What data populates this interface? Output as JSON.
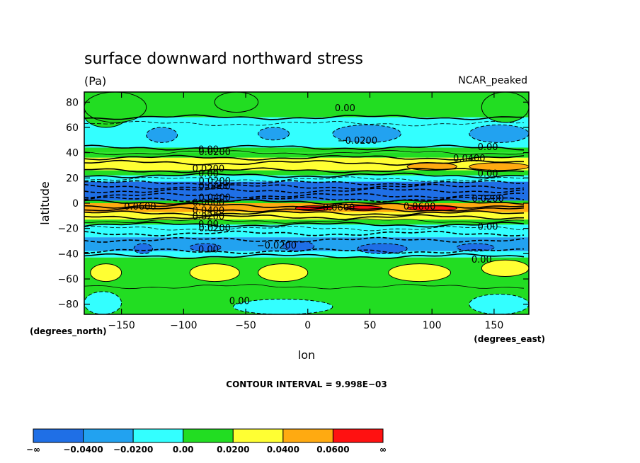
{
  "chart_data": {
    "type": "heatmap",
    "title": "surface downward northward stress",
    "units": "(Pa)",
    "dataset": "NCAR_peaked",
    "xlabel": "lon",
    "ylabel": "latitude",
    "x_unit": "(degrees_east)",
    "y_unit": "(degrees_north)",
    "xlim": [
      -180,
      178
    ],
    "ylim": [
      -88,
      88
    ],
    "x_ticks": [
      -150,
      -100,
      -50,
      0,
      50,
      100,
      150
    ],
    "x_tick_labels": [
      "−150",
      "−100",
      "−50",
      "0",
      "50",
      "100",
      "150"
    ],
    "y_ticks": [
      80,
      60,
      40,
      20,
      0,
      -20,
      -40,
      -60,
      -80
    ],
    "y_tick_labels": [
      "80",
      "60",
      "40",
      "20",
      "0",
      "−20",
      "−40",
      "−60",
      "−80"
    ],
    "contour_interval_text": "CONTOUR INTERVAL = 9.998E−03",
    "legend": {
      "boundaries": [
        "−∞",
        "−0.0400",
        "−0.0200",
        "0.00",
        "0.0200",
        "0.0400",
        "0.0600",
        "∞"
      ],
      "colors": [
        "#1f6fe6",
        "#22a2f0",
        "#33ffff",
        "#22dd22",
        "#ffff33",
        "#ffaa11",
        "#ff1111"
      ]
    },
    "bands": [
      {
        "lat": [
          68,
          88
        ],
        "value": 0.005
      },
      {
        "lat": [
          44,
          68
        ],
        "value": -0.008
      },
      {
        "lat": [
          40,
          44
        ],
        "value": 0.005
      },
      {
        "lat": [
          36,
          40
        ],
        "value": 0.015
      },
      {
        "lat": [
          26,
          36
        ],
        "value": 0.03
      },
      {
        "lat": [
          22,
          26
        ],
        "value": 0.01
      },
      {
        "lat": [
          17,
          22
        ],
        "value": -0.01
      },
      {
        "lat": [
          2,
          17
        ],
        "value": -0.045
      },
      {
        "lat": [
          0,
          2
        ],
        "value": 0.01
      },
      {
        "lat": [
          -7,
          0
        ],
        "value": 0.05
      },
      {
        "lat": [
          -13,
          -7
        ],
        "value": 0.03
      },
      {
        "lat": [
          -17,
          -13
        ],
        "value": 0.01
      },
      {
        "lat": [
          -27,
          -17
        ],
        "value": -0.01
      },
      {
        "lat": [
          -38,
          -27
        ],
        "value": -0.03
      },
      {
        "lat": [
          -43,
          -38
        ],
        "value": -0.01
      },
      {
        "lat": [
          -65,
          -43
        ],
        "value": 0.01
      },
      {
        "lat": [
          -88,
          -65
        ],
        "value": 0.003
      }
    ],
    "patches": [
      {
        "lon": [
          -75,
          -40
        ],
        "lat": [
          72,
          88
        ],
        "value": 0.005
      },
      {
        "lon": [
          -180,
          -145
        ],
        "lat": [
          60,
          80
        ],
        "value": 0.005
      },
      {
        "lon": [
          -130,
          -105
        ],
        "lat": [
          48,
          60
        ],
        "value": -0.025
      },
      {
        "lon": [
          -40,
          -15
        ],
        "lat": [
          50,
          60
        ],
        "value": -0.025
      },
      {
        "lon": [
          20,
          75
        ],
        "lat": [
          48,
          62
        ],
        "value": -0.025
      },
      {
        "lon": [
          130,
          178
        ],
        "lat": [
          48,
          62
        ],
        "value": -0.025
      },
      {
        "lon": [
          -180,
          -130
        ],
        "lat": [
          64,
          88
        ],
        "value": 0.005
      },
      {
        "lon": [
          140,
          178
        ],
        "lat": [
          64,
          88
        ],
        "value": 0.005
      },
      {
        "lon": [
          -140,
          -125
        ],
        "lat": [
          -40,
          -32
        ],
        "value": -0.045
      },
      {
        "lon": [
          -95,
          -70
        ],
        "lat": [
          -38,
          -32
        ],
        "value": -0.045
      },
      {
        "lon": [
          -20,
          5
        ],
        "lat": [
          -38,
          -30
        ],
        "value": -0.045
      },
      {
        "lon": [
          40,
          80
        ],
        "lat": [
          -40,
          -32
        ],
        "value": -0.045
      },
      {
        "lon": [
          120,
          150
        ],
        "lat": [
          -38,
          -32
        ],
        "value": -0.045
      },
      {
        "lon": [
          80,
          120
        ],
        "lat": [
          26,
          32
        ],
        "value": 0.045
      },
      {
        "lon": [
          130,
          178
        ],
        "lat": [
          26,
          32
        ],
        "value": 0.045
      },
      {
        "lon": [
          30,
          60
        ],
        "lat": [
          -6,
          -2
        ],
        "value": 0.065
      },
      {
        "lon": [
          80,
          120
        ],
        "lat": [
          -6,
          -2
        ],
        "value": 0.065
      },
      {
        "lon": [
          -10,
          20
        ],
        "lat": [
          -6,
          -2
        ],
        "value": 0.065
      },
      {
        "lon": [
          -175,
          -150
        ],
        "lat": [
          -62,
          -48
        ],
        "value": 0.025
      },
      {
        "lon": [
          -95,
          -55
        ],
        "lat": [
          -62,
          -48
        ],
        "value": 0.025
      },
      {
        "lon": [
          -40,
          0
        ],
        "lat": [
          -62,
          -48
        ],
        "value": 0.025
      },
      {
        "lon": [
          65,
          115
        ],
        "lat": [
          -62,
          -48
        ],
        "value": 0.025
      },
      {
        "lon": [
          140,
          178
        ],
        "lat": [
          -58,
          -45
        ],
        "value": 0.025
      },
      {
        "lon": [
          -180,
          -150
        ],
        "lat": [
          -88,
          -70
        ],
        "value": -0.005
      },
      {
        "lon": [
          -60,
          20
        ],
        "lat": [
          -88,
          -76
        ],
        "value": -0.005
      },
      {
        "lon": [
          130,
          178
        ],
        "lat": [
          -88,
          -72
        ],
        "value": -0.005
      }
    ],
    "contour_lines": [
      {
        "lat": 44,
        "value": 0.0,
        "style": "solid"
      },
      {
        "lat": 40,
        "value": 0.01,
        "style": "solid"
      },
      {
        "lat": 36,
        "value": 0.02,
        "style": "solid"
      },
      {
        "lat": 32,
        "value": 0.03,
        "style": "solid"
      },
      {
        "lat": 26,
        "value": 0.03,
        "style": "solid"
      },
      {
        "lat": 22,
        "value": 0.0,
        "style": "solid"
      },
      {
        "lat": 19,
        "value": -0.01,
        "style": "dashed"
      },
      {
        "lat": 16,
        "value": -0.02,
        "style": "dashed"
      },
      {
        "lat": 13,
        "value": -0.03,
        "style": "dashed"
      },
      {
        "lat": 10,
        "value": -0.04,
        "style": "dashed"
      },
      {
        "lat": 6,
        "value": -0.04,
        "style": "dashed"
      },
      {
        "lat": 3,
        "value": -0.03,
        "style": "dashed"
      },
      {
        "lat": 1,
        "value": 0.0,
        "style": "solid"
      },
      {
        "lat": -2,
        "value": 0.03,
        "style": "solid"
      },
      {
        "lat": -5,
        "value": 0.05,
        "style": "solid"
      },
      {
        "lat": -8,
        "value": 0.04,
        "style": "solid"
      },
      {
        "lat": -11,
        "value": 0.02,
        "style": "solid"
      },
      {
        "lat": -14,
        "value": 0.01,
        "style": "solid"
      },
      {
        "lat": -17,
        "value": 0.0,
        "style": "solid"
      },
      {
        "lat": -20,
        "value": -0.01,
        "style": "dashed"
      },
      {
        "lat": -24,
        "value": -0.02,
        "style": "dashed"
      },
      {
        "lat": -29,
        "value": -0.03,
        "style": "dashed"
      },
      {
        "lat": -38,
        "value": -0.02,
        "style": "dashed"
      },
      {
        "lat": -42,
        "value": 0.0,
        "style": "solid"
      },
      {
        "lat": -66,
        "value": 0.01,
        "style": "solid"
      },
      {
        "lat": 68,
        "value": 0.0,
        "style": "solid"
      },
      {
        "lat": 63,
        "value": -0.01,
        "style": "dashed"
      }
    ],
    "contour_labels": [
      {
        "lon": 30,
        "lat": 73,
        "text": "0.00"
      },
      {
        "lon": 40,
        "lat": 47,
        "text": "−0.0200"
      },
      {
        "lon": 145,
        "lat": 42,
        "text": "0.00"
      },
      {
        "lon": 130,
        "lat": 33,
        "text": "0.0400"
      },
      {
        "lon": 145,
        "lat": 21,
        "text": "0.00"
      },
      {
        "lon": -80,
        "lat": 40,
        "text": "0.00"
      },
      {
        "lon": -75,
        "lat": 38,
        "text": "0.0200"
      },
      {
        "lon": -80,
        "lat": 25,
        "text": "0.0200"
      },
      {
        "lon": -80,
        "lat": 21,
        "text": "0.00"
      },
      {
        "lon": -75,
        "lat": 15,
        "text": "0.0200"
      },
      {
        "lon": -75,
        "lat": 11,
        "text": "0.0400"
      },
      {
        "lon": -75,
        "lat": 2,
        "text": "0.0400"
      },
      {
        "lon": -135,
        "lat": -5,
        "text": "0.0600"
      },
      {
        "lon": -80,
        "lat": -2,
        "text": "0.0600"
      },
      {
        "lon": -80,
        "lat": -8,
        "text": "0.0400"
      },
      {
        "lon": -80,
        "lat": -13,
        "text": "0.0200"
      },
      {
        "lon": -80,
        "lat": -19,
        "text": "0.00"
      },
      {
        "lon": -75,
        "lat": -22,
        "text": "0.0200"
      },
      {
        "lon": 25,
        "lat": -6,
        "text": "0.0600"
      },
      {
        "lon": 90,
        "lat": -5,
        "text": "0.0600"
      },
      {
        "lon": 145,
        "lat": 1,
        "text": "0.0200"
      },
      {
        "lon": 145,
        "lat": -21,
        "text": "0.00"
      },
      {
        "lon": -25,
        "lat": -36,
        "text": "−0.0200"
      },
      {
        "lon": -80,
        "lat": -39,
        "text": "0.00"
      },
      {
        "lon": 140,
        "lat": -47,
        "text": "0.00"
      },
      {
        "lon": -55,
        "lat": -80,
        "text": "0.00"
      }
    ]
  }
}
